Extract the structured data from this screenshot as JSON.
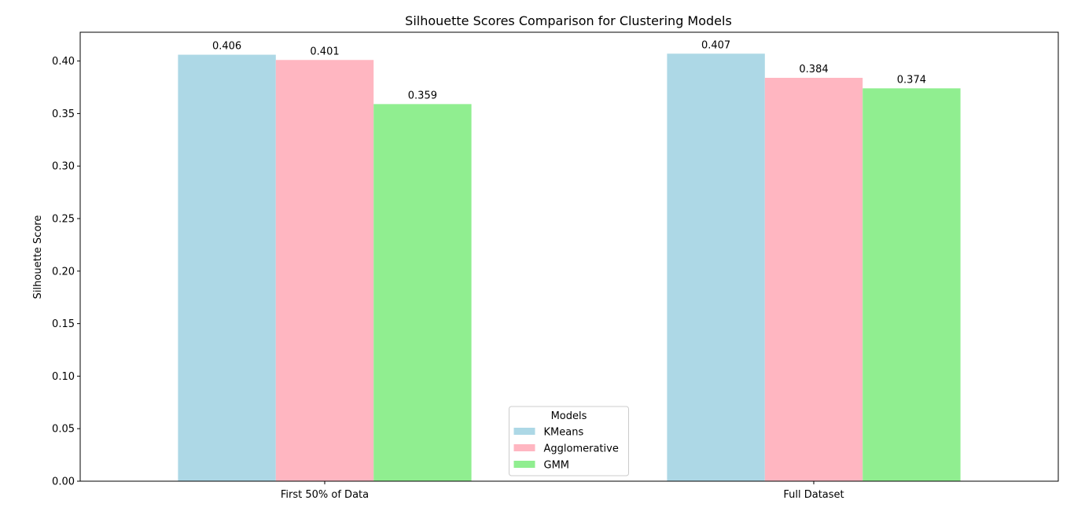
{
  "chart_data": {
    "type": "bar",
    "title": "Silhouette Scores Comparison for Clustering Models",
    "xlabel": "",
    "ylabel": "Silhouette Score",
    "categories": [
      "First 50% of Data",
      "Full Dataset"
    ],
    "series": [
      {
        "name": "KMeans",
        "values": [
          0.406,
          0.407
        ],
        "color": "#add8e6"
      },
      {
        "name": "Agglomerative",
        "values": [
          0.401,
          0.384
        ],
        "color": "#ffb6c1"
      },
      {
        "name": "GMM",
        "values": [
          0.359,
          0.374
        ],
        "color": "#90ee90"
      }
    ],
    "data_labels": [
      [
        "0.406",
        "0.407"
      ],
      [
        "0.401",
        "0.384"
      ],
      [
        "0.359",
        "0.374"
      ]
    ],
    "ylim": [
      0,
      0.4274
    ],
    "yticks": [
      0.0,
      0.05,
      0.1,
      0.15,
      0.2,
      0.25,
      0.3,
      0.35,
      0.4
    ],
    "ytick_labels": [
      "0.00",
      "0.05",
      "0.10",
      "0.15",
      "0.20",
      "0.25",
      "0.30",
      "0.35",
      "0.40"
    ],
    "grid": false,
    "legend": {
      "title": "Models",
      "placement": "lower-center"
    }
  }
}
